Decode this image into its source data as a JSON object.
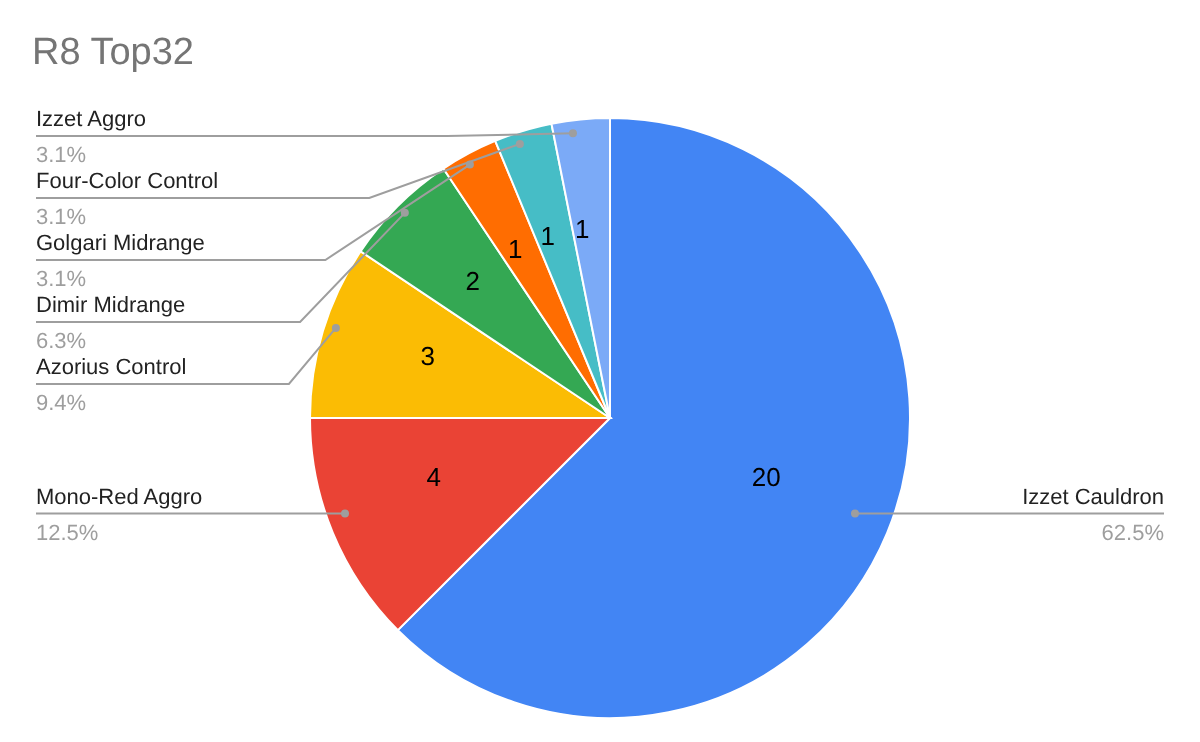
{
  "chart_data": {
    "type": "pie",
    "title": "R8 Top32",
    "categories": [
      "Izzet Cauldron",
      "Mono-Red Aggro",
      "Azorius Control",
      "Dimir Midrange",
      "Golgari Midrange",
      "Four-Color Control",
      "Izzet Aggro"
    ],
    "values": [
      20,
      4,
      3,
      2,
      1,
      1,
      1
    ],
    "colors": [
      "#4285f4",
      "#ea4335",
      "#fbbc04",
      "#34a853",
      "#ff6d01",
      "#46bdc6",
      "#7baaf7"
    ],
    "data_labels": true,
    "annotations": [
      {
        "text": "62.5%",
        "x": "Izzet Cauldron"
      },
      {
        "text": "12.5%",
        "x": "Mono-Red Aggro"
      },
      {
        "text": "9.4%",
        "x": "Azorius Control"
      },
      {
        "text": "6.3%",
        "x": "Dimir Midrange"
      },
      {
        "text": "3.1%",
        "x": "Golgari Midrange"
      },
      {
        "text": "3.1%",
        "x": "Four-Color Control"
      },
      {
        "text": "3.1%",
        "x": "Izzet Aggro"
      }
    ]
  }
}
